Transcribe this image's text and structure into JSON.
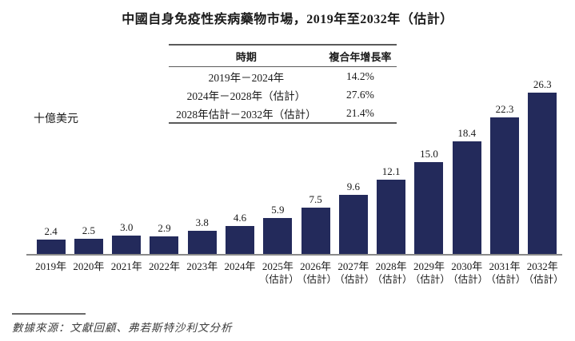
{
  "title": "中國自身免疫性疾病藥物市場，2019年至2032年（估計）",
  "y_axis_unit": "十億美元",
  "cagr_table": {
    "headers": [
      "時期",
      "複合年增長率"
    ],
    "rows": [
      {
        "period": "2019年－2024年",
        "cagr": "14.2%"
      },
      {
        "period": "2024年－2028年（估計）",
        "cagr": "27.6%"
      },
      {
        "period": "2028年估計－2032年（估計）",
        "cagr": "21.4%"
      }
    ]
  },
  "source": "數據來源：文獻回顧、弗若斯特沙利文分析",
  "colors": {
    "bar": "#232A5B",
    "axis_line": "#8a8a8a",
    "table_rule": "#5a5a5a"
  },
  "chart_data": {
    "type": "bar",
    "title": "中國自身免疫性疾病藥物市場，2019年至2032年（估計）",
    "ylabel": "十億美元",
    "xlabel": "",
    "categories": [
      "2019年",
      "2020年",
      "2021年",
      "2022年",
      "2023年",
      "2024年",
      "2025年（估計）",
      "2026年（估計）",
      "2027年（估計）",
      "2028年（估計）",
      "2029年（估計）",
      "2030年（估計）",
      "2031年（估計）",
      "2032年（估計）"
    ],
    "values": [
      2.4,
      2.5,
      3.0,
      2.9,
      3.8,
      4.6,
      5.9,
      7.5,
      9.6,
      12.1,
      15.0,
      18.4,
      22.3,
      26.3
    ],
    "value_label_decimals": 1,
    "estimate_suffix": "（估計）",
    "ylim": [
      0,
      28
    ],
    "grid": false,
    "legend": "none",
    "bar_color": "#232A5B"
  }
}
